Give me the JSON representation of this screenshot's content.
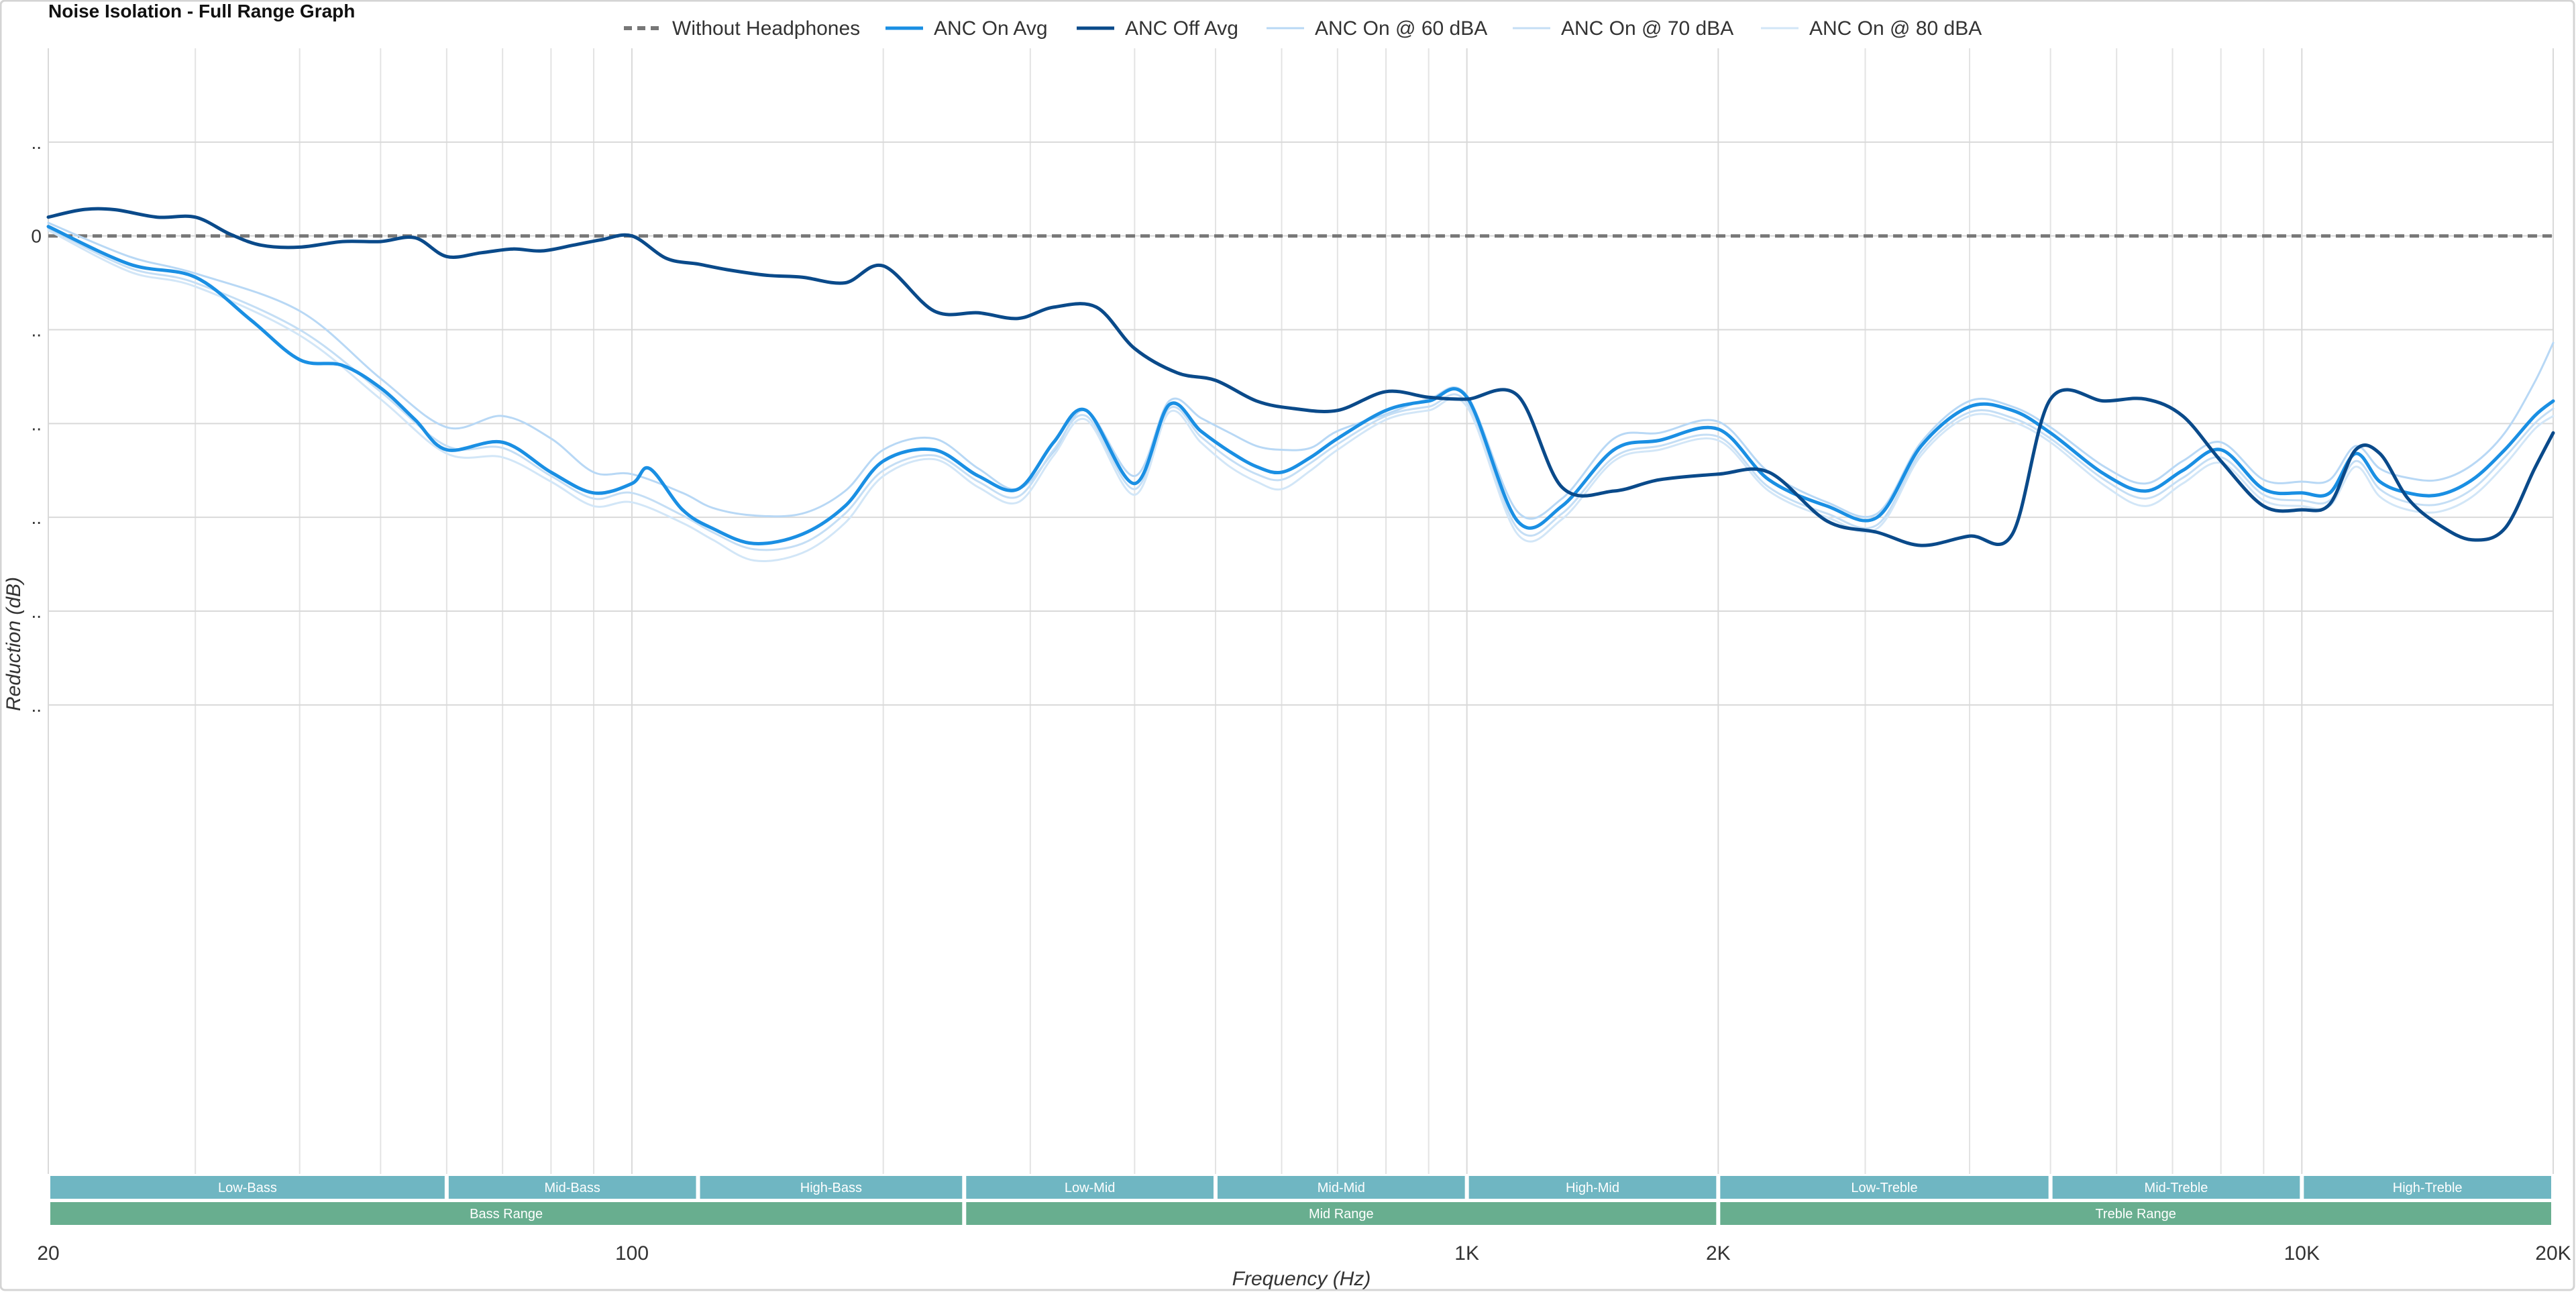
{
  "chart_data": {
    "type": "line",
    "title": "Noise Isolation - Full Range Graph",
    "xlabel": "Frequency (Hz)",
    "ylabel": "Reduction (dB)",
    "x_scale": "log",
    "xlim": [
      20,
      20000
    ],
    "ylim": [
      -50,
      10
    ],
    "grid": true,
    "legend_position": "top",
    "x_tick_labels": [
      {
        "value": 20,
        "label": "20"
      },
      {
        "value": 100,
        "label": "100"
      },
      {
        "value": 1000,
        "label": "1K"
      },
      {
        "value": 2000,
        "label": "2K"
      },
      {
        "value": 10000,
        "label": "10K"
      },
      {
        "value": 20000,
        "label": "20K"
      }
    ],
    "x_minor_grid": [
      30,
      40,
      50,
      60,
      70,
      80,
      90,
      200,
      300,
      400,
      500,
      600,
      700,
      800,
      900,
      3000,
      4000,
      5000,
      6000,
      7000,
      8000,
      9000
    ],
    "y_ticks": [
      {
        "value": 5,
        "label": ".."
      },
      {
        "value": 0,
        "label": "0"
      },
      {
        "value": -5,
        "label": ".."
      },
      {
        "value": -10,
        "label": ".."
      },
      {
        "value": -15,
        "label": ".."
      },
      {
        "value": -20,
        "label": ".."
      },
      {
        "value": -25,
        "label": ".."
      }
    ],
    "series": [
      {
        "name": "Without Headphones",
        "color": "#777777",
        "style": "dashed",
        "x": [
          20,
          20000
        ],
        "y": [
          0,
          0
        ]
      },
      {
        "name": "ANC On Avg",
        "color": "#1a8fe3",
        "style": "solid-bold",
        "x": [
          20,
          25,
          30,
          35,
          40,
          45,
          50,
          55,
          60,
          70,
          80,
          90,
          100,
          105,
          115,
          125,
          140,
          160,
          180,
          200,
          230,
          260,
          290,
          320,
          350,
          400,
          440,
          480,
          520,
          560,
          600,
          650,
          700,
          800,
          900,
          1000,
          1150,
          1300,
          1500,
          1700,
          2000,
          2300,
          2700,
          3100,
          3500,
          4000,
          4500,
          5000,
          5800,
          6500,
          7200,
          8000,
          9000,
          10000,
          10800,
          11600,
          12400,
          13400,
          14600,
          16000,
          17500,
          19000,
          20000
        ],
        "y": [
          0.5,
          -1.5,
          -2.2,
          -4.5,
          -6.6,
          -6.9,
          -8.1,
          -9.8,
          -11.4,
          -11.0,
          -12.6,
          -13.7,
          -13.2,
          -12.4,
          -14.6,
          -15.6,
          -16.4,
          -15.9,
          -14.4,
          -12.0,
          -11.4,
          -12.8,
          -13.5,
          -11.0,
          -9.3,
          -13.2,
          -9.0,
          -10.4,
          -11.5,
          -12.3,
          -12.6,
          -11.8,
          -10.8,
          -9.3,
          -8.8,
          -8.6,
          -15.2,
          -14.4,
          -11.4,
          -10.9,
          -10.3,
          -13.0,
          -14.4,
          -15.0,
          -11.2,
          -9.1,
          -9.3,
          -10.5,
          -12.7,
          -13.6,
          -12.5,
          -11.4,
          -13.5,
          -13.7,
          -13.7,
          -11.6,
          -13.1,
          -13.7,
          -13.8,
          -13.0,
          -11.4,
          -9.6,
          -8.8
        ]
      },
      {
        "name": "ANC Off Avg",
        "color": "#0a4a8a",
        "style": "solid-bold",
        "x": [
          20,
          22,
          24,
          27,
          30,
          33,
          36,
          40,
          45,
          50,
          55,
          60,
          66,
          72,
          78,
          85,
          92,
          100,
          110,
          120,
          130,
          145,
          160,
          180,
          200,
          230,
          260,
          290,
          320,
          360,
          400,
          450,
          500,
          560,
          620,
          700,
          800,
          900,
          1000,
          1150,
          1300,
          1500,
          1700,
          2000,
          2300,
          2700,
          3100,
          3500,
          4000,
          4500,
          5000,
          5800,
          6500,
          7200,
          8000,
          9000,
          10000,
          10800,
          11600,
          12400,
          13400,
          14600,
          16000,
          17500,
          19000,
          20000
        ],
        "y": [
          1.0,
          1.4,
          1.4,
          1.0,
          1.0,
          0.1,
          -0.5,
          -0.6,
          -0.3,
          -0.3,
          -0.1,
          -1.1,
          -0.9,
          -0.7,
          -0.8,
          -0.5,
          -0.2,
          0.0,
          -1.2,
          -1.5,
          -1.8,
          -2.1,
          -2.2,
          -2.5,
          -1.6,
          -4.0,
          -4.1,
          -4.4,
          -3.8,
          -3.8,
          -6.0,
          -7.3,
          -7.7,
          -8.8,
          -9.2,
          -9.3,
          -8.3,
          -8.6,
          -8.7,
          -8.5,
          -13.4,
          -13.6,
          -13.0,
          -12.7,
          -12.6,
          -15.2,
          -15.8,
          -16.5,
          -16.0,
          -15.9,
          -8.7,
          -8.8,
          -8.7,
          -9.6,
          -12.0,
          -14.4,
          -14.6,
          -14.3,
          -11.4,
          -11.6,
          -14.0,
          -15.4,
          -16.2,
          -15.6,
          -12.4,
          -10.5
        ]
      },
      {
        "name": "ANC On @ 60 dBA",
        "color": "#b8d8f5",
        "style": "solid-thin",
        "x": [
          20,
          25,
          30,
          40,
          50,
          60,
          70,
          80,
          90,
          100,
          115,
          125,
          140,
          160,
          180,
          200,
          230,
          260,
          290,
          320,
          350,
          400,
          440,
          480,
          520,
          560,
          600,
          650,
          700,
          800,
          900,
          1000,
          1150,
          1300,
          1500,
          1700,
          2000,
          2300,
          2700,
          3100,
          3500,
          4000,
          4500,
          5000,
          5800,
          6500,
          7200,
          8000,
          9000,
          10000,
          10800,
          11600,
          12400,
          13400,
          14600,
          16000,
          17500,
          19000,
          20000
        ],
        "y": [
          0.7,
          -1.1,
          -2.0,
          -4.0,
          -7.6,
          -10.2,
          -9.6,
          -10.8,
          -12.6,
          -12.7,
          -13.7,
          -14.5,
          -14.9,
          -14.8,
          -13.6,
          -11.4,
          -10.8,
          -12.4,
          -13.5,
          -11.5,
          -9.3,
          -12.8,
          -8.8,
          -9.7,
          -10.5,
          -11.2,
          -11.4,
          -11.3,
          -10.4,
          -9.5,
          -8.7,
          -8.5,
          -14.7,
          -14.0,
          -10.8,
          -10.5,
          -9.9,
          -12.6,
          -14.2,
          -14.8,
          -11.0,
          -8.8,
          -9.1,
          -10.2,
          -12.3,
          -13.2,
          -12.0,
          -11.0,
          -13.0,
          -13.1,
          -13.0,
          -11.2,
          -12.4,
          -12.9,
          -13.0,
          -12.2,
          -10.5,
          -7.8,
          -5.7
        ]
      },
      {
        "name": "ANC On @ 70 dBA",
        "color": "#c4def5",
        "style": "solid-thin",
        "x": [
          20,
          25,
          30,
          40,
          50,
          60,
          70,
          80,
          90,
          100,
          115,
          125,
          140,
          160,
          180,
          200,
          230,
          260,
          290,
          320,
          350,
          400,
          440,
          480,
          520,
          560,
          600,
          650,
          700,
          800,
          900,
          1000,
          1150,
          1300,
          1500,
          1700,
          2000,
          2300,
          2700,
          3100,
          3500,
          4000,
          4500,
          5000,
          5800,
          6500,
          7200,
          8000,
          9000,
          10000,
          10800,
          11600,
          12400,
          13400,
          14600,
          16000,
          17500,
          19000,
          20000
        ],
        "y": [
          0.4,
          -1.7,
          -2.5,
          -5.0,
          -8.3,
          -11.2,
          -11.3,
          -12.8,
          -14.0,
          -13.7,
          -14.9,
          -15.8,
          -16.7,
          -16.4,
          -14.8,
          -12.5,
          -11.7,
          -13.1,
          -13.9,
          -11.4,
          -9.6,
          -13.5,
          -9.2,
          -10.7,
          -11.9,
          -12.7,
          -13.0,
          -12.1,
          -11.1,
          -9.6,
          -9.1,
          -8.9,
          -15.6,
          -14.8,
          -11.8,
          -11.2,
          -10.7,
          -13.4,
          -14.8,
          -15.4,
          -11.5,
          -9.4,
          -9.7,
          -10.8,
          -13.0,
          -14.0,
          -12.9,
          -11.8,
          -13.8,
          -14.1,
          -14.1,
          -12.0,
          -13.5,
          -14.2,
          -14.3,
          -13.5,
          -11.8,
          -10.0,
          -9.2
        ]
      },
      {
        "name": "ANC On @ 80 dBA",
        "color": "#d2e6f7",
        "style": "solid-thin",
        "x": [
          20,
          25,
          30,
          40,
          50,
          60,
          70,
          80,
          90,
          100,
          115,
          125,
          140,
          160,
          180,
          200,
          230,
          260,
          290,
          320,
          350,
          400,
          440,
          480,
          520,
          560,
          600,
          650,
          700,
          800,
          900,
          1000,
          1150,
          1300,
          1500,
          1700,
          2000,
          2300,
          2700,
          3100,
          3500,
          4000,
          4500,
          5000,
          5800,
          6500,
          7200,
          8000,
          9000,
          10000,
          10800,
          11600,
          12400,
          13400,
          14600,
          16000,
          17500,
          19000,
          20000
        ],
        "y": [
          0.3,
          -1.9,
          -2.7,
          -5.3,
          -8.7,
          -11.6,
          -11.8,
          -13.1,
          -14.4,
          -14.2,
          -15.3,
          -16.2,
          -17.3,
          -16.9,
          -15.3,
          -12.8,
          -11.9,
          -13.4,
          -14.2,
          -11.7,
          -9.8,
          -13.8,
          -9.4,
          -11.0,
          -12.3,
          -13.1,
          -13.5,
          -12.5,
          -11.4,
          -9.8,
          -9.3,
          -9.1,
          -15.9,
          -15.1,
          -12.0,
          -11.4,
          -10.9,
          -13.6,
          -15.0,
          -15.6,
          -11.7,
          -9.6,
          -9.9,
          -11.0,
          -13.3,
          -14.4,
          -13.2,
          -12.1,
          -14.1,
          -14.4,
          -14.4,
          -12.3,
          -13.9,
          -14.6,
          -14.7,
          -13.9,
          -12.2,
          -10.3,
          -9.6
        ]
      }
    ],
    "frequency_bands": {
      "upper": [
        {
          "label": "Low-Bass",
          "from": 20,
          "to": 60
        },
        {
          "label": "Mid-Bass",
          "from": 60,
          "to": 120
        },
        {
          "label": "High-Bass",
          "from": 120,
          "to": 250
        },
        {
          "label": "Low-Mid",
          "from": 250,
          "to": 500
        },
        {
          "label": "Mid-Mid",
          "from": 500,
          "to": 1000
        },
        {
          "label": "High-Mid",
          "from": 1000,
          "to": 2000
        },
        {
          "label": "Low-Treble",
          "from": 2000,
          "to": 5000
        },
        {
          "label": "Mid-Treble",
          "from": 5000,
          "to": 10000
        },
        {
          "label": "High-Treble",
          "from": 10000,
          "to": 20000
        }
      ],
      "lower": [
        {
          "label": "Bass Range",
          "from": 20,
          "to": 250
        },
        {
          "label": "Mid Range",
          "from": 250,
          "to": 2000
        },
        {
          "label": "Treble Range",
          "from": 2000,
          "to": 20000
        }
      ],
      "upper_color": "#6fb6c2",
      "lower_color": "#68ae8f"
    }
  }
}
